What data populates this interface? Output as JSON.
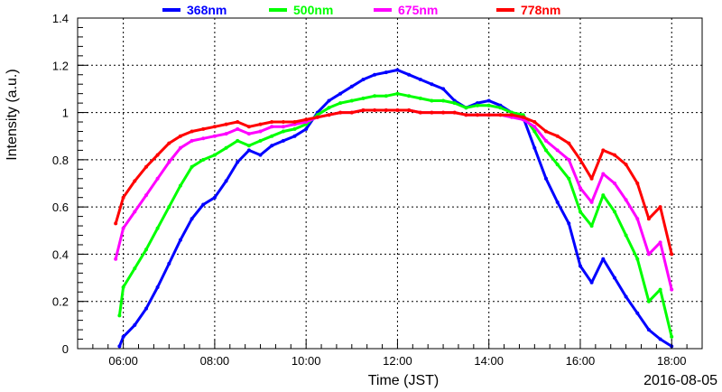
{
  "chart_data": {
    "type": "scatter",
    "title": "",
    "xlabel": "Time (JST)",
    "ylabel": "Intensity (a.u.)",
    "date_label": "2016-08-05",
    "xlim": [
      "05:00",
      "18:40"
    ],
    "ylim": [
      0,
      1.4
    ],
    "x_ticks": [
      "06:00",
      "08:00",
      "10:00",
      "12:00",
      "14:00",
      "16:00",
      "18:00"
    ],
    "y_ticks": [
      "0",
      "0.2",
      "0.4",
      "0.6",
      "0.8",
      "1",
      "1.2",
      "1.4"
    ],
    "grid": true,
    "legend_position": "top",
    "series": [
      {
        "name": "368nm",
        "color": "#0000ff",
        "points": [
          [
            "05:55",
            0.01
          ],
          [
            "06:00",
            0.05
          ],
          [
            "06:15",
            0.1
          ],
          [
            "06:30",
            0.17
          ],
          [
            "06:45",
            0.26
          ],
          [
            "07:00",
            0.36
          ],
          [
            "07:15",
            0.46
          ],
          [
            "07:30",
            0.55
          ],
          [
            "07:45",
            0.61
          ],
          [
            "08:00",
            0.64
          ],
          [
            "08:15",
            0.71
          ],
          [
            "08:30",
            0.79
          ],
          [
            "08:45",
            0.84
          ],
          [
            "09:00",
            0.82
          ],
          [
            "09:15",
            0.86
          ],
          [
            "09:30",
            0.88
          ],
          [
            "09:45",
            0.9
          ],
          [
            "10:00",
            0.93
          ],
          [
            "10:15",
            1.0
          ],
          [
            "10:30",
            1.05
          ],
          [
            "10:45",
            1.08
          ],
          [
            "11:00",
            1.11
          ],
          [
            "11:15",
            1.14
          ],
          [
            "11:30",
            1.16
          ],
          [
            "11:45",
            1.17
          ],
          [
            "12:00",
            1.18
          ],
          [
            "12:15",
            1.16
          ],
          [
            "12:30",
            1.14
          ],
          [
            "12:45",
            1.12
          ],
          [
            "13:00",
            1.1
          ],
          [
            "13:15",
            1.05
          ],
          [
            "13:30",
            1.02
          ],
          [
            "13:45",
            1.04
          ],
          [
            "14:00",
            1.05
          ],
          [
            "14:15",
            1.03
          ],
          [
            "14:30",
            1.0
          ],
          [
            "14:45",
            0.98
          ],
          [
            "15:00",
            0.85
          ],
          [
            "15:15",
            0.72
          ],
          [
            "15:30",
            0.62
          ],
          [
            "15:45",
            0.53
          ],
          [
            "16:00",
            0.35
          ],
          [
            "16:15",
            0.28
          ],
          [
            "16:30",
            0.38
          ],
          [
            "16:45",
            0.3
          ],
          [
            "17:00",
            0.22
          ],
          [
            "17:15",
            0.15
          ],
          [
            "17:30",
            0.08
          ],
          [
            "17:45",
            0.04
          ],
          [
            "18:00",
            0.01
          ]
        ]
      },
      {
        "name": "500nm",
        "color": "#00ff00",
        "points": [
          [
            "05:55",
            0.14
          ],
          [
            "06:00",
            0.26
          ],
          [
            "06:15",
            0.34
          ],
          [
            "06:30",
            0.42
          ],
          [
            "06:45",
            0.51
          ],
          [
            "07:00",
            0.6
          ],
          [
            "07:15",
            0.69
          ],
          [
            "07:30",
            0.77
          ],
          [
            "07:45",
            0.8
          ],
          [
            "08:00",
            0.82
          ],
          [
            "08:15",
            0.85
          ],
          [
            "08:30",
            0.88
          ],
          [
            "08:45",
            0.86
          ],
          [
            "09:00",
            0.88
          ],
          [
            "09:15",
            0.9
          ],
          [
            "09:30",
            0.92
          ],
          [
            "09:45",
            0.93
          ],
          [
            "10:00",
            0.95
          ],
          [
            "10:15",
            0.99
          ],
          [
            "10:30",
            1.02
          ],
          [
            "10:45",
            1.04
          ],
          [
            "11:00",
            1.05
          ],
          [
            "11:15",
            1.06
          ],
          [
            "11:30",
            1.07
          ],
          [
            "11:45",
            1.07
          ],
          [
            "12:00",
            1.08
          ],
          [
            "12:15",
            1.07
          ],
          [
            "12:30",
            1.06
          ],
          [
            "12:45",
            1.05
          ],
          [
            "13:00",
            1.05
          ],
          [
            "13:15",
            1.04
          ],
          [
            "13:30",
            1.02
          ],
          [
            "13:45",
            1.03
          ],
          [
            "14:00",
            1.03
          ],
          [
            "14:15",
            1.02
          ],
          [
            "14:30",
            1.0
          ],
          [
            "14:45",
            0.99
          ],
          [
            "15:00",
            0.92
          ],
          [
            "15:15",
            0.84
          ],
          [
            "15:30",
            0.78
          ],
          [
            "15:45",
            0.72
          ],
          [
            "16:00",
            0.58
          ],
          [
            "16:15",
            0.52
          ],
          [
            "16:30",
            0.65
          ],
          [
            "16:45",
            0.58
          ],
          [
            "17:00",
            0.48
          ],
          [
            "17:15",
            0.38
          ],
          [
            "17:30",
            0.2
          ],
          [
            "17:45",
            0.25
          ],
          [
            "18:00",
            0.05
          ]
        ]
      },
      {
        "name": "675nm",
        "color": "#ff00ff",
        "points": [
          [
            "05:50",
            0.38
          ],
          [
            "06:00",
            0.51
          ],
          [
            "06:15",
            0.58
          ],
          [
            "06:30",
            0.65
          ],
          [
            "06:45",
            0.72
          ],
          [
            "07:00",
            0.79
          ],
          [
            "07:15",
            0.85
          ],
          [
            "07:30",
            0.88
          ],
          [
            "07:45",
            0.89
          ],
          [
            "08:00",
            0.9
          ],
          [
            "08:15",
            0.91
          ],
          [
            "08:30",
            0.93
          ],
          [
            "08:45",
            0.91
          ],
          [
            "09:00",
            0.92
          ],
          [
            "09:15",
            0.94
          ],
          [
            "09:30",
            0.94
          ],
          [
            "09:45",
            0.95
          ],
          [
            "10:00",
            0.96
          ],
          [
            "10:15",
            0.98
          ],
          [
            "10:30",
            0.99
          ],
          [
            "10:45",
            1.0
          ],
          [
            "11:00",
            1.0
          ],
          [
            "11:15",
            1.01
          ],
          [
            "11:30",
            1.01
          ],
          [
            "11:45",
            1.01
          ],
          [
            "12:00",
            1.01
          ],
          [
            "12:15",
            1.01
          ],
          [
            "12:30",
            1.0
          ],
          [
            "12:45",
            1.0
          ],
          [
            "13:00",
            1.0
          ],
          [
            "13:15",
            1.0
          ],
          [
            "13:30",
            0.99
          ],
          [
            "13:45",
            0.99
          ],
          [
            "14:00",
            0.99
          ],
          [
            "14:15",
            0.99
          ],
          [
            "14:30",
            0.98
          ],
          [
            "14:45",
            0.97
          ],
          [
            "15:00",
            0.94
          ],
          [
            "15:15",
            0.88
          ],
          [
            "15:30",
            0.84
          ],
          [
            "15:45",
            0.8
          ],
          [
            "16:00",
            0.68
          ],
          [
            "16:15",
            0.62
          ],
          [
            "16:30",
            0.74
          ],
          [
            "16:45",
            0.7
          ],
          [
            "17:00",
            0.63
          ],
          [
            "17:15",
            0.55
          ],
          [
            "17:30",
            0.4
          ],
          [
            "17:45",
            0.45
          ],
          [
            "18:00",
            0.25
          ]
        ]
      },
      {
        "name": "778nm",
        "color": "#ff0000",
        "points": [
          [
            "05:50",
            0.53
          ],
          [
            "06:00",
            0.64
          ],
          [
            "06:15",
            0.71
          ],
          [
            "06:30",
            0.77
          ],
          [
            "06:45",
            0.82
          ],
          [
            "07:00",
            0.87
          ],
          [
            "07:15",
            0.9
          ],
          [
            "07:30",
            0.92
          ],
          [
            "07:45",
            0.93
          ],
          [
            "08:00",
            0.94
          ],
          [
            "08:15",
            0.95
          ],
          [
            "08:30",
            0.96
          ],
          [
            "08:45",
            0.94
          ],
          [
            "09:00",
            0.95
          ],
          [
            "09:15",
            0.96
          ],
          [
            "09:30",
            0.96
          ],
          [
            "09:45",
            0.96
          ],
          [
            "10:00",
            0.97
          ],
          [
            "10:15",
            0.98
          ],
          [
            "10:30",
            0.99
          ],
          [
            "10:45",
            1.0
          ],
          [
            "11:00",
            1.0
          ],
          [
            "11:15",
            1.01
          ],
          [
            "11:30",
            1.01
          ],
          [
            "11:45",
            1.01
          ],
          [
            "12:00",
            1.01
          ],
          [
            "12:15",
            1.01
          ],
          [
            "12:30",
            1.0
          ],
          [
            "12:45",
            1.0
          ],
          [
            "13:00",
            1.0
          ],
          [
            "13:15",
            1.0
          ],
          [
            "13:30",
            0.99
          ],
          [
            "13:45",
            0.99
          ],
          [
            "14:00",
            0.99
          ],
          [
            "14:15",
            0.99
          ],
          [
            "14:30",
            0.99
          ],
          [
            "14:45",
            0.98
          ],
          [
            "15:00",
            0.96
          ],
          [
            "15:15",
            0.92
          ],
          [
            "15:30",
            0.9
          ],
          [
            "15:45",
            0.87
          ],
          [
            "16:00",
            0.8
          ],
          [
            "16:15",
            0.72
          ],
          [
            "16:30",
            0.84
          ],
          [
            "16:45",
            0.82
          ],
          [
            "17:00",
            0.78
          ],
          [
            "17:15",
            0.7
          ],
          [
            "17:30",
            0.55
          ],
          [
            "17:45",
            0.6
          ],
          [
            "18:00",
            0.4
          ]
        ]
      }
    ]
  }
}
